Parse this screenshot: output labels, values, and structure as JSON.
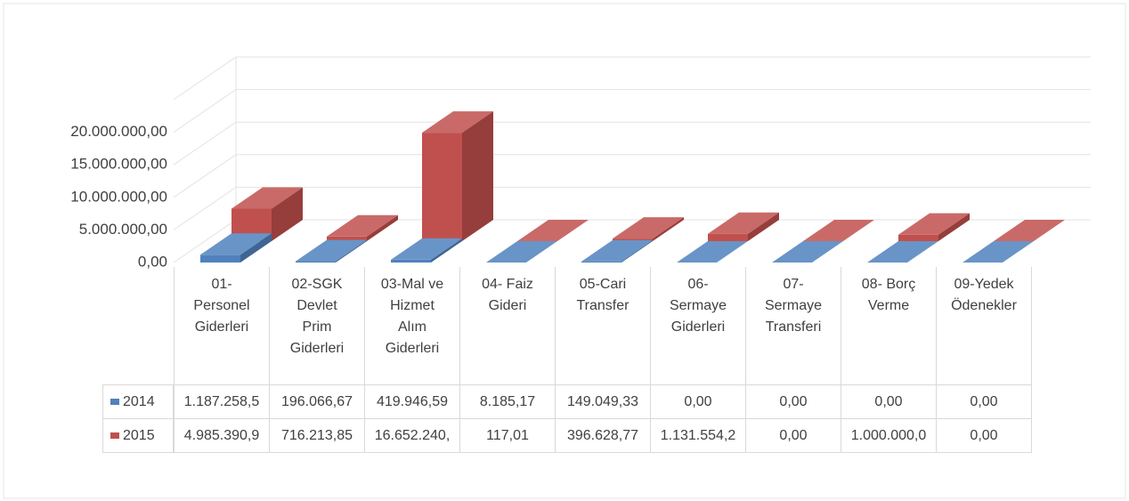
{
  "chart_data": {
    "type": "bar3d",
    "categories": [
      "01- Personel Giderleri",
      "02-SGK Devlet Prim Giderleri",
      "03-Mal ve Hizmet Alım Giderleri",
      "04- Faiz Gideri",
      "05-Cari Transfer",
      "06- Sermaye Giderleri",
      "07- Sermaye Transferi",
      "08- Borç Verme",
      "09-Yedek Ödenekler"
    ],
    "series": [
      {
        "name": "2014",
        "color": "#4f81bd",
        "values": [
          1187258.5,
          196066.67,
          419946.59,
          8185.17,
          149049.33,
          0,
          0,
          0,
          0
        ],
        "value_labels": [
          "1.187.258,5",
          "196.066,67",
          "419.946,59",
          "8.185,17",
          "149.049,33",
          "0,00",
          "0,00",
          "0,00",
          "0,00"
        ]
      },
      {
        "name": "2015",
        "color": "#c0504d",
        "values": [
          4985390.9,
          716213.85,
          16652240,
          117.01,
          396628.77,
          1131554.2,
          0,
          1000000,
          0
        ],
        "value_labels": [
          "4.985.390,9",
          "716.213,85",
          "16.652.240,",
          "117,01",
          "396.628,77",
          "1.131.554,2",
          "0,00",
          "1.000.000,0",
          "0,00"
        ]
      }
    ],
    "ylim": [
      0,
      25000000
    ],
    "yticks": [
      {
        "value": 0,
        "label": "0,00"
      },
      {
        "value": 5000000,
        "label": "5.000.000,00"
      },
      {
        "value": 10000000,
        "label": "10.000.000,00"
      },
      {
        "value": 15000000,
        "label": "15.000.000,00"
      },
      {
        "value": 20000000,
        "label": "20.000.000,00"
      }
    ],
    "grid": true,
    "legend": "table"
  }
}
